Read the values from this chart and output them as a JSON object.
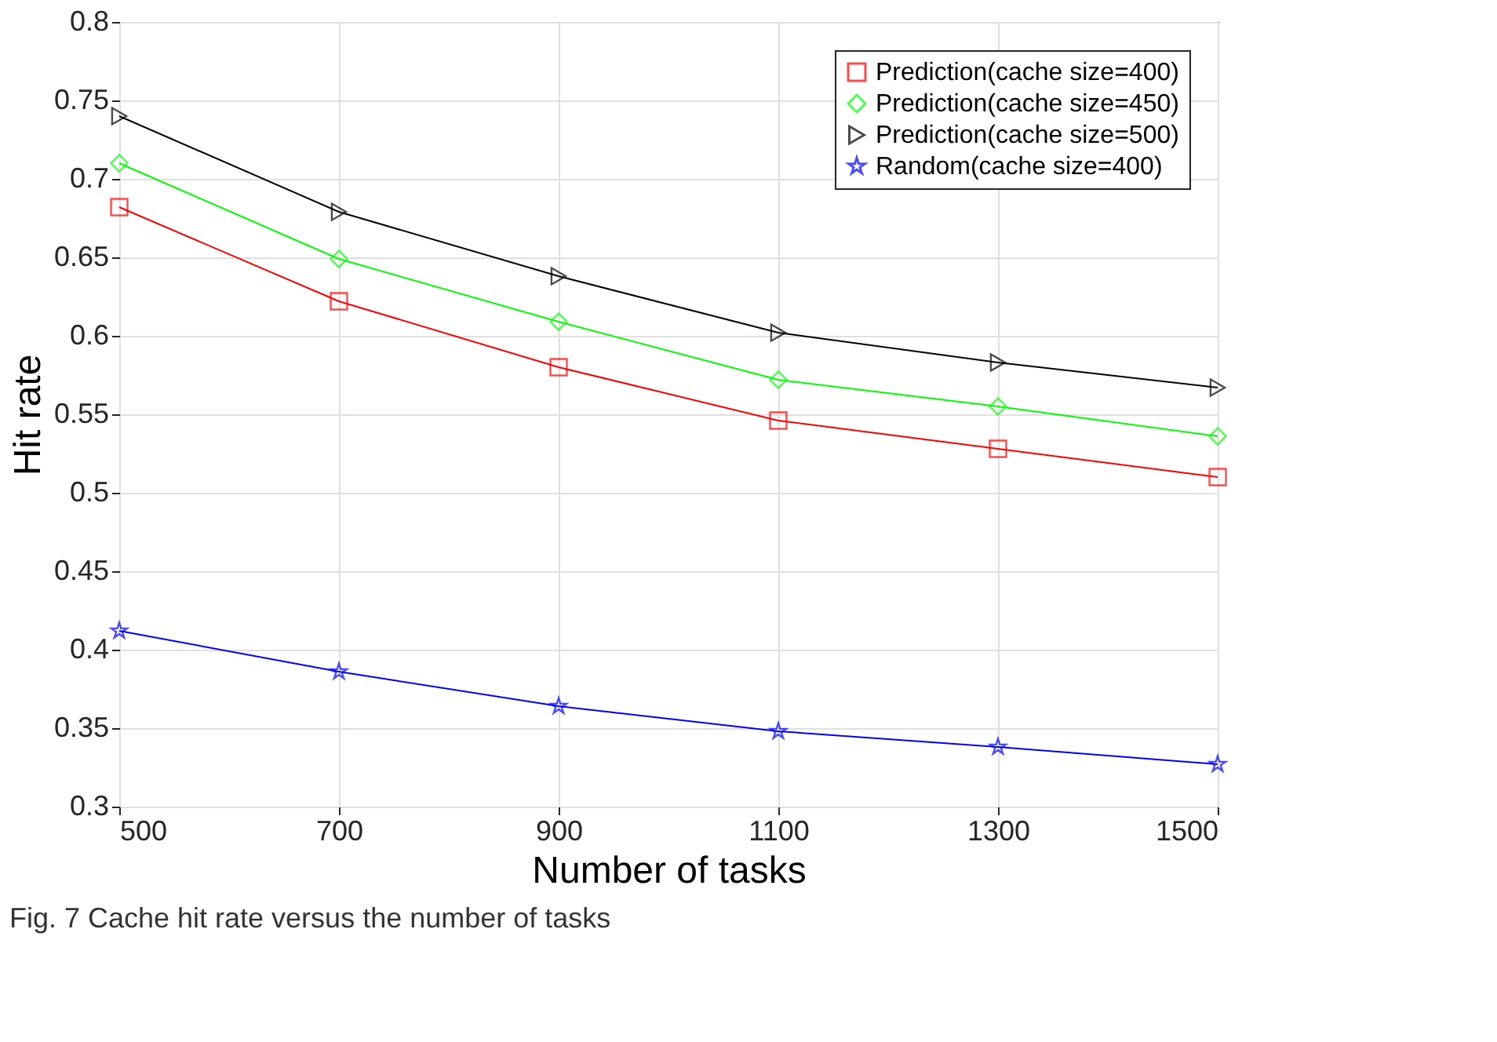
{
  "chart_data": {
    "type": "line",
    "xlabel": "Number of tasks",
    "ylabel": "Hit rate",
    "x": [
      500,
      700,
      900,
      1100,
      1300,
      1500
    ],
    "series": [
      {
        "name": "Prediction(cache size=400)",
        "color": "#ff0000",
        "marker": "square",
        "values": [
          0.682,
          0.622,
          0.58,
          0.546,
          0.528,
          0.51
        ]
      },
      {
        "name": "Prediction(cache size=450)",
        "color": "#00ff00",
        "marker": "diamond",
        "values": [
          0.71,
          0.649,
          0.609,
          0.572,
          0.555,
          0.536
        ]
      },
      {
        "name": "Prediction(cache size=500)",
        "color": "#000000",
        "marker": "triangle",
        "values": [
          0.74,
          0.679,
          0.638,
          0.602,
          0.583,
          0.567
        ]
      },
      {
        "name": "Random(cache size=400)",
        "color": "#0000ff",
        "marker": "star",
        "values": [
          0.412,
          0.386,
          0.364,
          0.348,
          0.338,
          0.327
        ]
      }
    ],
    "xlim": [
      500,
      1500
    ],
    "xticks": [
      500,
      700,
      900,
      1100,
      1300,
      1500
    ],
    "ylim": [
      0.3,
      0.8
    ],
    "yticks": [
      0.3,
      0.35,
      0.4,
      0.45,
      0.5,
      0.55,
      0.6,
      0.65,
      0.7,
      0.75,
      0.8
    ],
    "grid": true,
    "legend": "top right",
    "line_style": "solid",
    "annotations": [
      "Fig. 7  Cache hit rate versus the number of tasks"
    ]
  }
}
